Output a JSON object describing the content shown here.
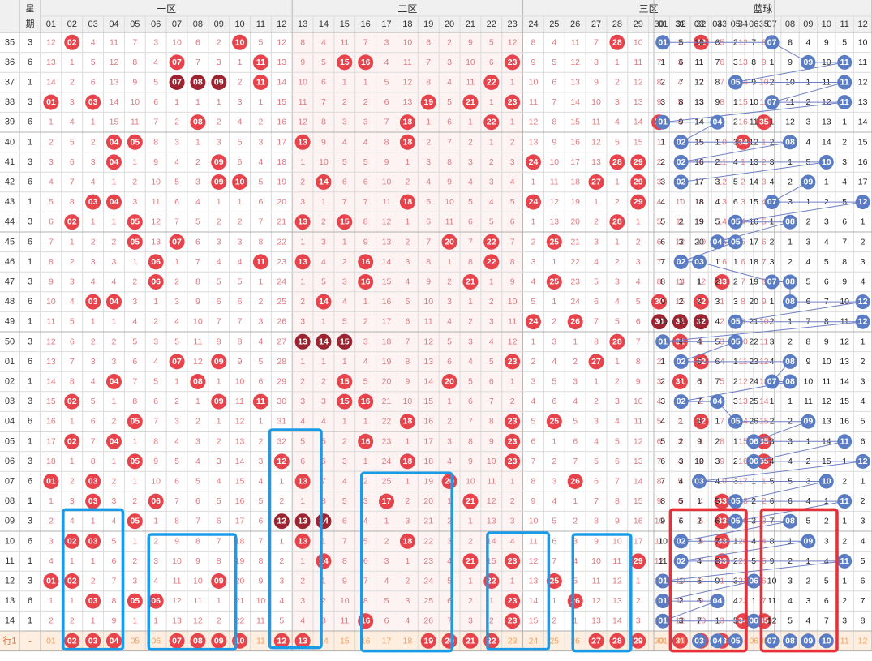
{
  "chart_data": {
    "type": "table",
    "headers": {
      "issue_col": "",
      "week_col": "星期",
      "zone_labels": [
        "一区",
        "二区",
        "三区",
        "蓝球"
      ],
      "red_numbers": [
        "01",
        "02",
        "03",
        "04",
        "05",
        "06",
        "07",
        "08",
        "09",
        "10",
        "11",
        "12",
        "13",
        "14",
        "15",
        "16",
        "17",
        "18",
        "19",
        "20",
        "21",
        "22",
        "23",
        "24",
        "25",
        "26",
        "27",
        "28",
        "29",
        "30",
        "31",
        "32",
        "33",
        "34",
        "35"
      ],
      "blue_numbers": [
        "01",
        "02",
        "03",
        "04",
        "05",
        "06",
        "07",
        "08",
        "09",
        "10",
        "11",
        "12"
      ]
    },
    "rows": [
      {
        "issue": "35",
        "week": "3",
        "red": [
          2,
          10,
          28,
          32
        ],
        "blue": [
          1,
          7
        ]
      },
      {
        "issue": "36",
        "week": "6",
        "red": [
          7,
          11,
          15,
          16,
          23
        ],
        "blue": [
          9,
          11
        ]
      },
      {
        "issue": "37",
        "week": "1",
        "red": [
          7,
          8,
          9,
          11,
          22
        ],
        "blue": [
          5,
          11
        ]
      },
      {
        "issue": "38",
        "week": "3",
        "red": [
          1,
          3,
          19,
          21,
          23
        ],
        "blue": [
          7,
          11
        ]
      },
      {
        "issue": "39",
        "week": "6",
        "red": [
          8,
          18,
          22,
          30,
          35
        ],
        "blue": [
          1,
          4
        ]
      },
      {
        "issue": "40",
        "week": "1",
        "red": [
          4,
          5,
          13,
          18,
          34
        ],
        "blue": [
          2,
          8
        ]
      },
      {
        "issue": "41",
        "week": "3",
        "red": [
          4,
          9,
          24,
          28,
          29
        ],
        "blue": [
          2,
          10
        ]
      },
      {
        "issue": "42",
        "week": "6",
        "red": [
          9,
          10,
          14,
          27,
          29
        ],
        "blue": [
          2,
          9
        ]
      },
      {
        "issue": "43",
        "week": "1",
        "red": [
          3,
          4,
          18,
          24,
          29
        ],
        "blue": [
          7,
          12
        ]
      },
      {
        "issue": "44",
        "week": "3",
        "red": [
          2,
          5,
          13,
          15,
          28
        ],
        "blue": [
          5,
          8
        ]
      },
      {
        "issue": "45",
        "week": "6",
        "red": [
          5,
          7,
          20,
          22,
          25
        ],
        "blue": [
          4,
          5
        ]
      },
      {
        "issue": "46",
        "week": "1",
        "red": [
          6,
          11,
          13,
          16,
          22
        ],
        "blue": [
          2,
          3
        ]
      },
      {
        "issue": "47",
        "week": "3",
        "red": [
          6,
          16,
          21,
          25,
          33
        ],
        "blue": [
          7,
          8
        ]
      },
      {
        "issue": "48",
        "week": "6",
        "red": [
          3,
          4,
          14,
          30,
          32
        ],
        "blue": [
          8,
          12
        ]
      },
      {
        "issue": "49",
        "week": "1",
        "red": [
          24,
          26,
          30,
          31,
          32
        ],
        "blue": [
          5,
          12
        ]
      },
      {
        "issue": "50",
        "week": "3",
        "red": [
          13,
          14,
          15,
          28,
          31
        ],
        "blue": [
          1,
          5
        ]
      },
      {
        "issue": "01",
        "week": "6",
        "red": [
          7,
          9,
          23,
          27,
          32
        ],
        "blue": [
          2,
          8
        ]
      },
      {
        "issue": "02",
        "week": "1",
        "red": [
          4,
          8,
          15,
          20,
          31
        ],
        "blue": [
          7,
          8
        ]
      },
      {
        "issue": "03",
        "week": "3",
        "red": [
          2,
          9,
          11,
          15,
          16
        ],
        "blue": [
          2,
          4
        ]
      },
      {
        "issue": "04",
        "week": "6",
        "red": [
          5,
          18,
          23,
          25,
          32
        ],
        "blue": [
          5,
          9
        ]
      },
      {
        "issue": "05",
        "week": "1",
        "red": [
          2,
          4,
          16,
          23,
          35
        ],
        "blue": [
          6,
          11
        ]
      },
      {
        "issue": "06",
        "week": "3",
        "red": [
          5,
          12,
          18,
          23,
          35
        ],
        "blue": [
          6,
          12
        ]
      },
      {
        "issue": "07",
        "week": "6",
        "red": [
          1,
          3,
          13,
          20,
          26
        ],
        "blue": [
          3,
          10
        ]
      },
      {
        "issue": "08",
        "week": "1",
        "red": [
          3,
          6,
          17,
          21,
          33
        ],
        "blue": [
          5,
          11
        ]
      },
      {
        "issue": "09",
        "week": "3",
        "red": [
          5,
          12,
          13,
          14,
          33
        ],
        "blue": [
          5,
          8
        ]
      },
      {
        "issue": "10",
        "week": "6",
        "red": [
          2,
          3,
          13,
          18,
          33
        ],
        "blue": [
          2,
          9
        ]
      },
      {
        "issue": "11",
        "week": "1",
        "red": [
          14,
          21,
          23,
          29,
          33
        ],
        "blue": [
          2,
          11
        ]
      },
      {
        "issue": "12",
        "week": "3",
        "red": [
          1,
          2,
          9,
          22,
          25
        ],
        "blue": [
          1,
          6
        ]
      },
      {
        "issue": "13",
        "week": "6",
        "red": [
          3,
          5,
          6,
          23,
          26
        ],
        "blue": [
          1,
          4
        ]
      },
      {
        "issue": "14",
        "week": "1",
        "red": [
          16,
          23,
          34,
          35
        ],
        "blue": [
          1,
          6
        ]
      }
    ],
    "footer": {
      "label": "行1",
      "dash": "-",
      "highlight_red": [
        2,
        3,
        4,
        7,
        8,
        9,
        10,
        12,
        13,
        19,
        20,
        21,
        22,
        27,
        28,
        29,
        31,
        32,
        33
      ],
      "highlight_blue": [
        3,
        4,
        5,
        7,
        8,
        9,
        10
      ]
    },
    "colors": {
      "red_ball": "#e8424b",
      "dark_ball": "#9c2330",
      "blue_ball": "#5a7cc4",
      "miss_text": "#e07a80",
      "blue_miss_text": "#222222",
      "header_bg": "#f0f0f0",
      "footer_bg": "#fdeee0",
      "box_blue": "#1a9be8",
      "box_red": "#e8303a"
    }
  }
}
